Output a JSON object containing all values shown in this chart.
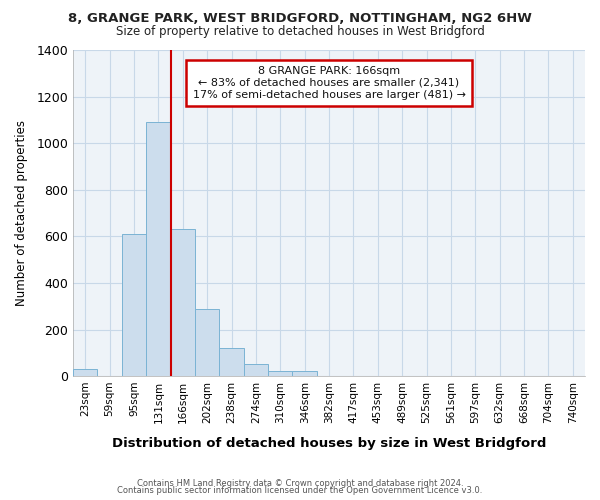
{
  "title1": "8, GRANGE PARK, WEST BRIDGFORD, NOTTINGHAM, NG2 6HW",
  "title2": "Size of property relative to detached houses in West Bridgford",
  "xlabel": "Distribution of detached houses by size in West Bridgford",
  "ylabel": "Number of detached properties",
  "footer1": "Contains HM Land Registry data © Crown copyright and database right 2024.",
  "footer2": "Contains public sector information licensed under the Open Government Licence v3.0.",
  "bin_labels": [
    "23sqm",
    "59sqm",
    "95sqm",
    "131sqm",
    "166sqm",
    "202sqm",
    "238sqm",
    "274sqm",
    "310sqm",
    "346sqm",
    "382sqm",
    "417sqm",
    "453sqm",
    "489sqm",
    "525sqm",
    "561sqm",
    "597sqm",
    "632sqm",
    "668sqm",
    "704sqm",
    "740sqm"
  ],
  "bar_values": [
    30,
    0,
    610,
    1090,
    630,
    290,
    120,
    50,
    20,
    20,
    0,
    0,
    0,
    0,
    0,
    0,
    0,
    0,
    0,
    0,
    0
  ],
  "bar_color": "#ccdded",
  "bar_edge_color": "#7ab3d4",
  "red_line_index": 4,
  "ylim": [
    0,
    1400
  ],
  "yticks": [
    0,
    200,
    400,
    600,
    800,
    1000,
    1200,
    1400
  ],
  "annotation_title": "8 GRANGE PARK: 166sqm",
  "annotation_line1": "← 83% of detached houses are smaller (2,341)",
  "annotation_line2": "17% of semi-detached houses are larger (481) →",
  "annotation_box_color": "#ffffff",
  "annotation_border_color": "#cc0000",
  "grid_color": "#c8d8e8",
  "background_color": "#ffffff",
  "plot_bg_color": "#eef3f8"
}
